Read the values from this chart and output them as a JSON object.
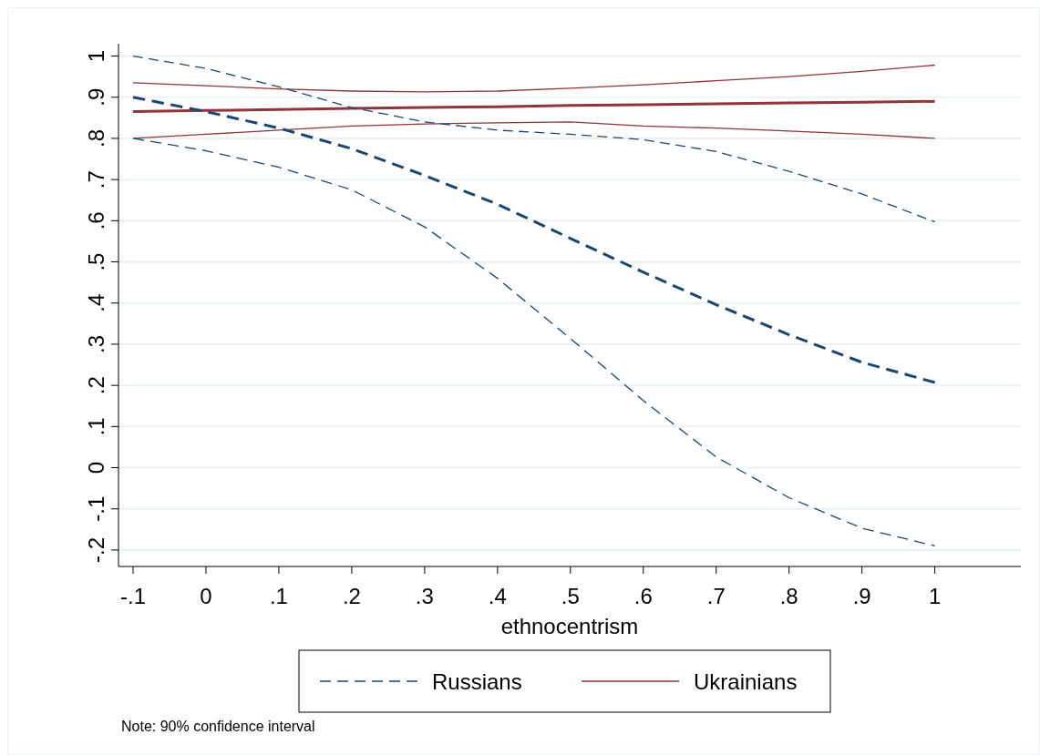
{
  "chart_data": {
    "type": "line",
    "xlabel": "ethnocentrism",
    "x": [
      -0.1,
      0,
      0.1,
      0.2,
      0.3,
      0.4,
      0.5,
      0.6,
      0.7,
      0.8,
      0.9,
      1
    ],
    "xlim": [
      -0.12,
      1.118
    ],
    "xticks": [
      {
        "value": -0.1,
        "label": "-.1"
      },
      0,
      {
        "value": 0.1,
        "label": ".1"
      },
      {
        "value": 0.2,
        "label": ".2"
      },
      {
        "value": 0.3,
        "label": ".3"
      },
      {
        "value": 0.4,
        "label": ".4"
      },
      {
        "value": 0.5,
        "label": ".5"
      },
      {
        "value": 0.6,
        "label": ".6"
      },
      {
        "value": 0.7,
        "label": ".7"
      },
      {
        "value": 0.8,
        "label": ".8"
      },
      {
        "value": 0.9,
        "label": ".9"
      },
      1
    ],
    "ylim": [
      -0.24,
      1.03
    ],
    "yticks": [
      {
        "value": -0.2,
        "label": "-.2"
      },
      {
        "value": -0.1,
        "label": "-.1"
      },
      0,
      {
        "value": 0.1,
        "label": ".1"
      },
      {
        "value": 0.2,
        "label": ".2"
      },
      {
        "value": 0.3,
        "label": ".3"
      },
      {
        "value": 0.4,
        "label": ".4"
      },
      {
        "value": 0.5,
        "label": ".5"
      },
      {
        "value": 0.6,
        "label": ".6"
      },
      {
        "value": 0.7,
        "label": ".7"
      },
      {
        "value": 0.8,
        "label": ".8"
      },
      {
        "value": 0.9,
        "label": ".9"
      },
      1
    ],
    "grid": "y",
    "legend": "bottom",
    "marker": "none",
    "series": [
      {
        "name": "Russians",
        "color": "#1a476f",
        "line_style": "dashed",
        "values": [
          0.9,
          0.865,
          0.825,
          0.775,
          0.71,
          0.64,
          0.557,
          0.475,
          0.396,
          0.323,
          0.256,
          0.207
        ]
      },
      {
        "color": "#1a476f",
        "line_style": "dashed",
        "values": [
          0.8,
          0.77,
          0.73,
          0.675,
          0.585,
          0.46,
          0.314,
          0.163,
          0.026,
          -0.073,
          -0.147,
          -0.19
        ]
      },
      {
        "color": "#1a476f",
        "line_style": "dashed",
        "values": [
          1.0,
          0.97,
          0.925,
          0.875,
          0.84,
          0.82,
          0.81,
          0.797,
          0.768,
          0.72,
          0.665,
          0.597
        ]
      },
      {
        "name": "Ukrainians",
        "color": "#90353b",
        "line_style": "solid",
        "values": [
          0.865,
          0.868,
          0.87,
          0.873,
          0.875,
          0.877,
          0.88,
          0.882,
          0.884,
          0.886,
          0.888,
          0.89
        ]
      },
      {
        "color": "#90353b",
        "line_style": "solid",
        "values": [
          0.8,
          0.81,
          0.82,
          0.83,
          0.835,
          0.838,
          0.84,
          0.83,
          0.825,
          0.818,
          0.81,
          0.8
        ]
      },
      {
        "color": "#90353b",
        "line_style": "solid",
        "values": [
          0.935,
          0.928,
          0.92,
          0.915,
          0.913,
          0.915,
          0.922,
          0.93,
          0.94,
          0.95,
          0.963,
          0.978
        ]
      }
    ],
    "annotations": [
      "Note: 90% confidence interval"
    ]
  }
}
